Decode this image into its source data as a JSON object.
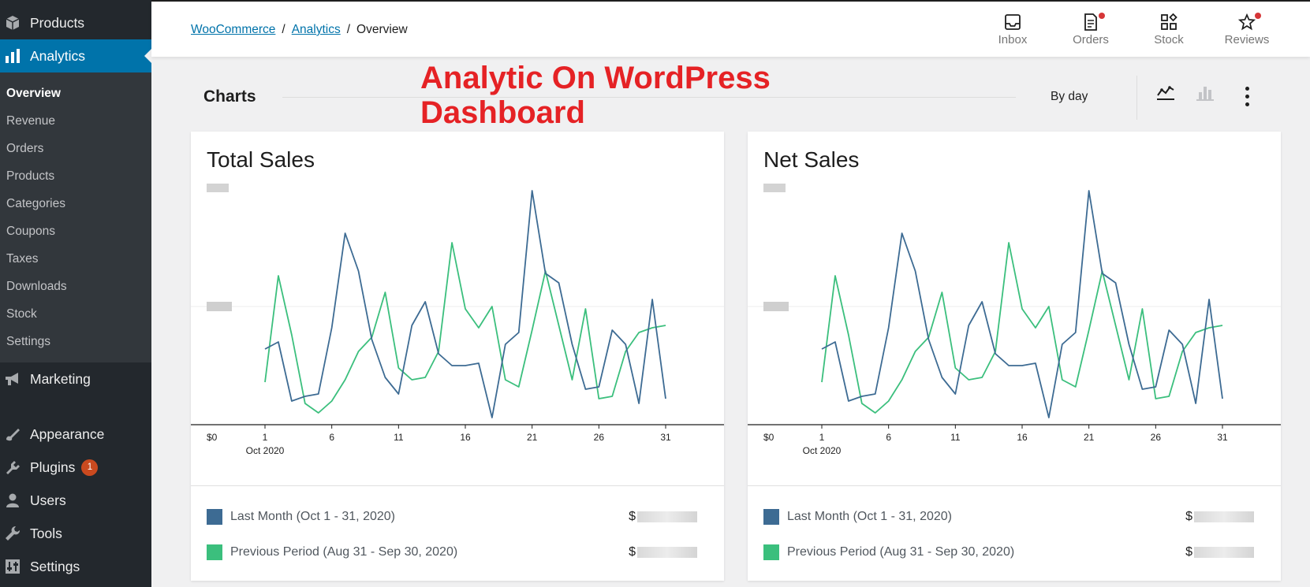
{
  "sidebar": {
    "products": "Products",
    "analytics": "Analytics",
    "submenu": [
      "Overview",
      "Revenue",
      "Orders",
      "Products",
      "Categories",
      "Coupons",
      "Taxes",
      "Downloads",
      "Stock",
      "Settings"
    ],
    "marketing": "Marketing",
    "appearance": "Appearance",
    "plugins": "Plugins",
    "plugins_badge": "1",
    "users": "Users",
    "tools": "Tools",
    "settings": "Settings"
  },
  "breadcrumb": {
    "root": "WooCommerce",
    "section": "Analytics",
    "current": "Overview"
  },
  "header_actions": {
    "inbox": "Inbox",
    "orders": "Orders",
    "stock": "Stock",
    "reviews": "Reviews"
  },
  "charts": {
    "title": "Charts",
    "interval": "By day",
    "overlay_line1": "Analytic On WordPress",
    "overlay_line2": "Dashboard"
  },
  "colors": {
    "last_month": "#3d6b93",
    "previous_period": "#3bbf7d",
    "accent": "#0073aa",
    "overlay": "#e52225"
  },
  "cards": [
    {
      "title": "Total Sales",
      "y_zero_label": "$0",
      "legend_current": "Last Month (Oct 1 - 31, 2020)",
      "legend_previous": "Previous Period (Aug 31 - Sep 30, 2020)",
      "value_prefix": "$"
    },
    {
      "title": "Net Sales",
      "y_zero_label": "$0",
      "legend_current": "Last Month (Oct 1 - 31, 2020)",
      "legend_previous": "Previous Period (Aug 31 - Sep 30, 2020)",
      "value_prefix": "$"
    }
  ],
  "chart_data": [
    {
      "type": "line",
      "title": "Total Sales",
      "x_tick_labels": [
        "1",
        "6",
        "11",
        "16",
        "21",
        "26",
        "31"
      ],
      "x_sub_label": "Oct 2020",
      "x": [
        1,
        2,
        3,
        4,
        5,
        6,
        7,
        8,
        9,
        10,
        11,
        12,
        13,
        14,
        15,
        16,
        17,
        18,
        19,
        20,
        21,
        22,
        23,
        24,
        25,
        26,
        27,
        28,
        29,
        30,
        31
      ],
      "ylim": [
        0,
        100
      ],
      "grid": true,
      "series": [
        {
          "name": "Last Month (Oct 1 - 31, 2020)",
          "values": [
            32,
            35,
            10,
            12,
            13,
            41,
            81,
            65,
            36,
            20,
            13,
            42,
            52,
            30,
            25,
            25,
            26,
            3,
            34,
            39,
            99,
            64,
            60,
            34,
            15,
            16,
            40,
            34,
            9,
            53,
            11
          ]
        },
        {
          "name": "Previous Period (Aug 31 - Sep 30, 2020)",
          "values": [
            18,
            63,
            38,
            9,
            5,
            10,
            19,
            31,
            37,
            56,
            24,
            19,
            20,
            31,
            77,
            49,
            41,
            50,
            19,
            16,
            40,
            65,
            42,
            19,
            49,
            11,
            12,
            31,
            39,
            41,
            42
          ]
        }
      ]
    },
    {
      "type": "line",
      "title": "Net Sales",
      "x_tick_labels": [
        "1",
        "6",
        "11",
        "16",
        "21",
        "26",
        "31"
      ],
      "x_sub_label": "Oct 2020",
      "x": [
        1,
        2,
        3,
        4,
        5,
        6,
        7,
        8,
        9,
        10,
        11,
        12,
        13,
        14,
        15,
        16,
        17,
        18,
        19,
        20,
        21,
        22,
        23,
        24,
        25,
        26,
        27,
        28,
        29,
        30,
        31
      ],
      "ylim": [
        0,
        100
      ],
      "grid": true,
      "series": [
        {
          "name": "Last Month (Oct 1 - 31, 2020)",
          "values": [
            32,
            35,
            10,
            12,
            13,
            41,
            81,
            65,
            36,
            20,
            13,
            42,
            52,
            30,
            25,
            25,
            26,
            3,
            34,
            39,
            99,
            64,
            60,
            34,
            15,
            16,
            40,
            34,
            9,
            53,
            11
          ]
        },
        {
          "name": "Previous Period (Aug 31 - Sep 30, 2020)",
          "values": [
            18,
            63,
            38,
            9,
            5,
            10,
            19,
            31,
            37,
            56,
            24,
            19,
            20,
            31,
            77,
            49,
            41,
            50,
            19,
            16,
            40,
            65,
            42,
            19,
            49,
            11,
            12,
            31,
            39,
            41,
            42
          ]
        }
      ]
    }
  ]
}
